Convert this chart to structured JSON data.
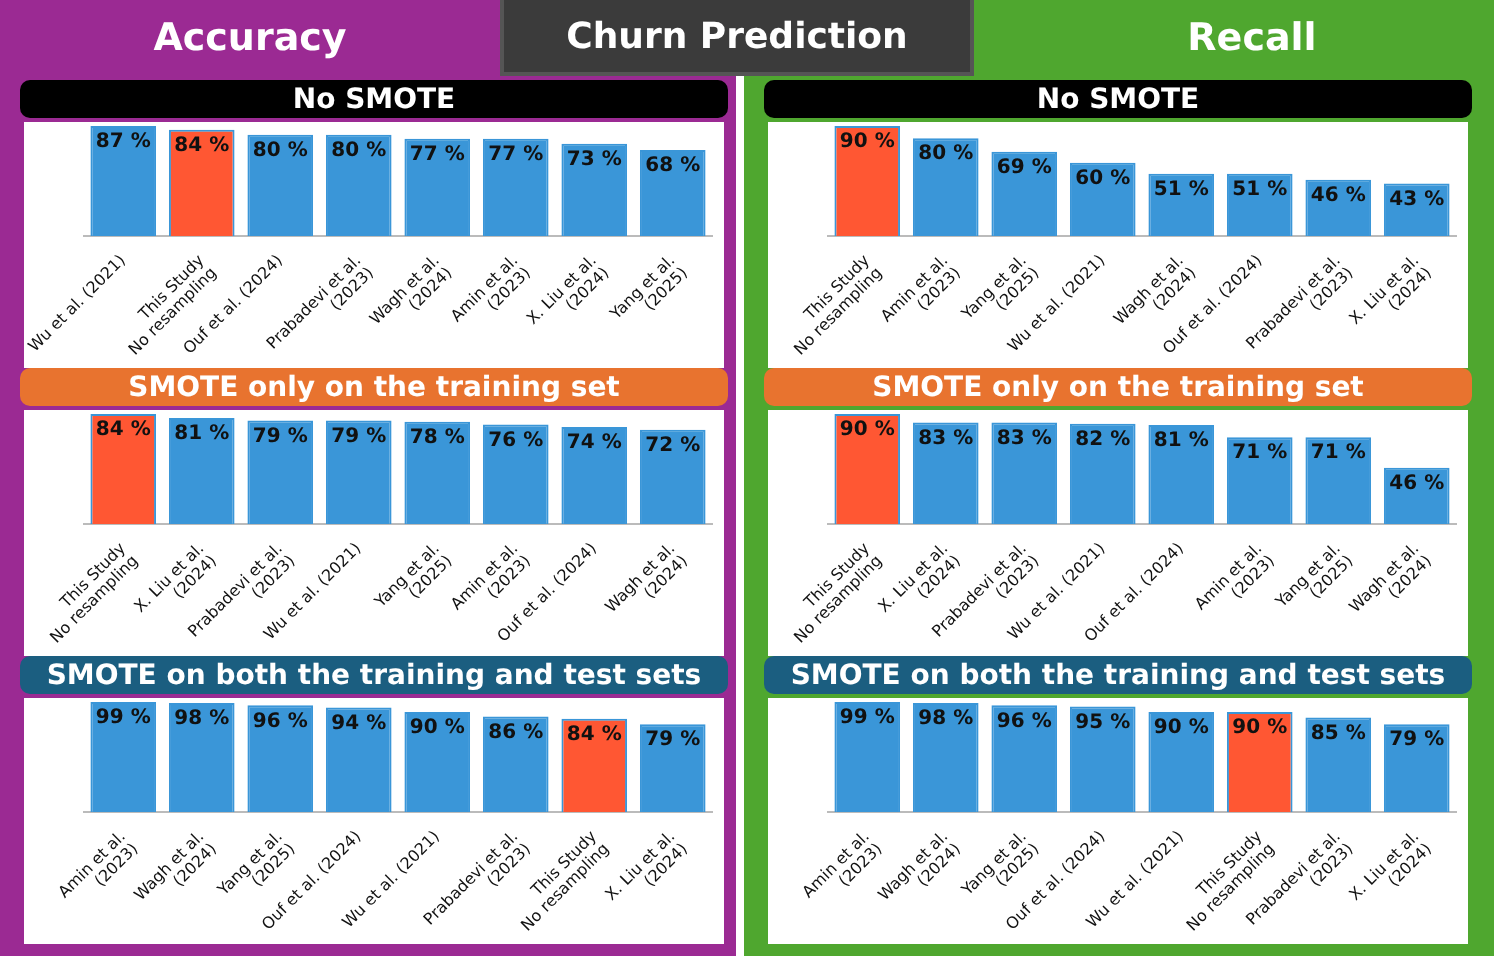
{
  "chart_data": [
    {
      "type": "bar",
      "subtitle": "Accuracy",
      "annotations": [
        "Churn Prediction"
      ],
      "title": "No SMOTE",
      "tick_labels": "x",
      "categories": [
        "Wu et al. (2021)",
        "This Study\nNo resampling",
        "Ouf et al. (2024)",
        "Prabadevi et al.\n(2023)",
        "Wagh et al.\n(2024)",
        "Amin et al.\n(2023)",
        "X. Liu et al.\n(2024)",
        "Yang et al.\n(2025)"
      ],
      "color": "#3a96d8",
      "colors": [
        "#3a96d8",
        "#ff5733",
        "#3a96d8",
        "#3a96d8",
        "#3a96d8",
        "#3a96d8",
        "#3a96d8",
        "#3a96d8"
      ],
      "values": [
        87,
        84,
        80,
        80,
        77,
        77,
        73,
        68
      ],
      "value_labels": [
        "87 %",
        "84 %",
        "80 %",
        "80 %",
        "77 %",
        "77 %",
        "73 %",
        "68 %"
      ]
    },
    {
      "type": "bar",
      "subtitle": "Recall",
      "title": "No SMOTE",
      "tick_labels": "x",
      "categories": [
        "This Study\nNo resampling",
        "Amin et al.\n(2023)",
        "Yang et al.\n(2025)",
        "Wu et al. (2021)",
        "Wagh et al.\n(2024)",
        "Ouf et al. (2024)",
        "Prabadevi et al.\n(2023)",
        "X. Liu et al.\n(2024)"
      ],
      "color": "#3a96d8",
      "colors": [
        "#ff5733",
        "#3a96d8",
        "#3a96d8",
        "#3a96d8",
        "#3a96d8",
        "#3a96d8",
        "#3a96d8",
        "#3a96d8"
      ],
      "values": [
        90,
        80,
        69,
        60,
        51,
        51,
        46,
        43
      ],
      "value_labels": [
        "90 %",
        "80 %",
        "69 %",
        "60 %",
        "51 %",
        "51 %",
        "46 %",
        "43 %"
      ]
    },
    {
      "type": "bar",
      "title": "SMOTE only on the training set",
      "tick_labels": "x",
      "categories": [
        "This Study\nNo resampling",
        "X. Liu et al.\n(2024)",
        "Prabadevi et al.\n(2023)",
        "Wu et al. (2021)",
        "Yang et al.\n(2025)",
        "Amin et al.\n(2023)",
        "Ouf et al. (2024)",
        "Wagh et al.\n(2024)"
      ],
      "color": "#3a96d8",
      "colors": [
        "#ff5733",
        "#3a96d8",
        "#3a96d8",
        "#3a96d8",
        "#3a96d8",
        "#3a96d8",
        "#3a96d8",
        "#3a96d8"
      ],
      "values": [
        84,
        81,
        79,
        79,
        78,
        76,
        74,
        72
      ],
      "value_labels": [
        "84 %",
        "81 %",
        "79 %",
        "79 %",
        "78 %",
        "76 %",
        "74 %",
        "72 %"
      ]
    },
    {
      "type": "bar",
      "title": "SMOTE only on the training set",
      "tick_labels": "x",
      "categories": [
        "This Study\nNo resampling",
        "X. Liu et al.\n(2024)",
        "Prabadevi et al.\n(2023)",
        "Wu et al. (2021)",
        "Ouf et al. (2024)",
        "Amin et al.\n(2023)",
        "Yang et al.\n(2025)",
        "Wagh et al.\n(2024)"
      ],
      "color": "#3a96d8",
      "colors": [
        "#ff5733",
        "#3a96d8",
        "#3a96d8",
        "#3a96d8",
        "#3a96d8",
        "#3a96d8",
        "#3a96d8",
        "#3a96d8"
      ],
      "values": [
        90,
        83,
        83,
        82,
        81,
        71,
        71,
        46
      ],
      "value_labels": [
        "90 %",
        "83 %",
        "83 %",
        "82 %",
        "81 %",
        "71 %",
        "71 %",
        "46 %"
      ]
    },
    {
      "type": "bar",
      "title": "SMOTE on both the training and test sets",
      "tick_labels": "x",
      "categories": [
        "Amin et al.\n(2023)",
        "Wagh et al.\n(2024)",
        "Yang et al.\n(2025)",
        "Ouf et al. (2024)",
        "Wu et al. (2021)",
        "Prabadevi et al.\n(2023)",
        "This Study\nNo resampling",
        "X. Liu et al.\n(2024)"
      ],
      "color": "#3a96d8",
      "colors": [
        "#3a96d8",
        "#3a96d8",
        "#3a96d8",
        "#3a96d8",
        "#3a96d8",
        "#3a96d8",
        "#ff5733",
        "#3a96d8"
      ],
      "values": [
        99,
        98,
        96,
        94,
        90,
        86,
        84,
        79
      ],
      "value_labels": [
        "99 %",
        "98 %",
        "96 %",
        "94 %",
        "90 %",
        "86 %",
        "84 %",
        "79 %"
      ]
    },
    {
      "type": "bar",
      "title": "SMOTE on both the training and test sets",
      "tick_labels": "x",
      "categories": [
        "Amin et al.\n(2023)",
        "Wagh et al.\n(2024)",
        "Yang et al.\n(2025)",
        "Ouf et al. (2024)",
        "Wu et al. (2021)",
        "This Study\nNo resampling",
        "Prabadevi et al.\n(2023)",
        "X. Liu et al.\n(2024)"
      ],
      "color": "#3a96d8",
      "colors": [
        "#3a96d8",
        "#3a96d8",
        "#3a96d8",
        "#3a96d8",
        "#3a96d8",
        "#ff5733",
        "#3a96d8",
        "#3a96d8"
      ],
      "values": [
        99,
        98,
        96,
        95,
        90,
        90,
        85,
        79
      ],
      "value_labels": [
        "99 %",
        "98 %",
        "96 %",
        "95 %",
        "90 %",
        "90 %",
        "85 %",
        "79 %"
      ]
    }
  ]
}
